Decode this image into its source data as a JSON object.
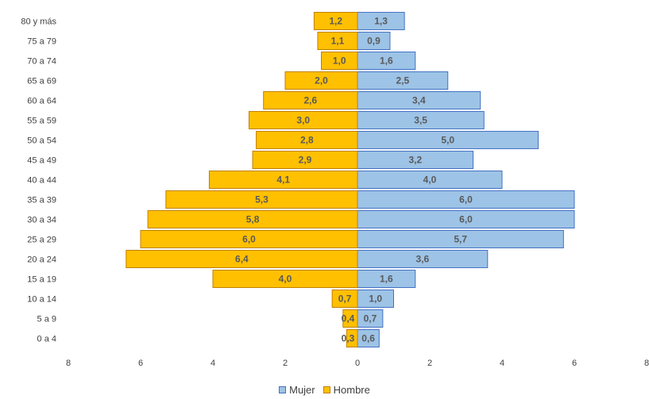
{
  "chart_data": {
    "type": "bar",
    "orientation": "horizontal",
    "subtype": "population-pyramid",
    "categories": [
      "80 y más",
      "75 a 79",
      "70 a 74",
      "65 a 69",
      "60 a 64",
      "55 a 59",
      "50 a 54",
      "45 a 49",
      "40 a 44",
      "35 a 39",
      "30 a 34",
      "25 a 29",
      "20 a 24",
      "15 a 19",
      "10 a 14",
      "5 a 9",
      "0 a 4"
    ],
    "series": [
      {
        "name": "Mujer",
        "color": "#9dc3e6",
        "stroke": "#4472c4",
        "side": "right",
        "values": [
          1.3,
          0.9,
          1.6,
          2.5,
          3.4,
          3.5,
          5.0,
          3.2,
          4.0,
          6.0,
          6.0,
          5.7,
          3.6,
          1.6,
          1.0,
          0.7,
          0.6
        ],
        "labels": [
          "1,3",
          "0,9",
          "1,6",
          "2,5",
          "3,4",
          "3,5",
          "5,0",
          "3,2",
          "4,0",
          "6,0",
          "6,0",
          "5,7",
          "3,6",
          "1,6",
          "1,0",
          "0,7",
          "0,6"
        ]
      },
      {
        "name": "Hombre",
        "color": "#ffc000",
        "stroke": "#c08000",
        "side": "left",
        "values": [
          1.2,
          1.1,
          1.0,
          2.0,
          2.6,
          3.0,
          2.8,
          2.9,
          4.1,
          5.3,
          5.8,
          6.0,
          6.4,
          4.0,
          0.7,
          0.4,
          0.3
        ],
        "labels": [
          "1,2",
          "1,1",
          "1,0",
          "2,0",
          "2,6",
          "3,0",
          "2,8",
          "2,9",
          "4,1",
          "5,3",
          "5,8",
          "6,0",
          "6,4",
          "4,0",
          "0,7",
          "0,4",
          "0,3"
        ]
      }
    ],
    "x_ticks": [
      "8",
      "6",
      "4",
      "2",
      "0",
      "2",
      "4",
      "6",
      "8"
    ],
    "xlim": [
      -8,
      8
    ],
    "title": "",
    "xlabel": "",
    "ylabel": "",
    "grid": false,
    "legend_position": "bottom"
  }
}
